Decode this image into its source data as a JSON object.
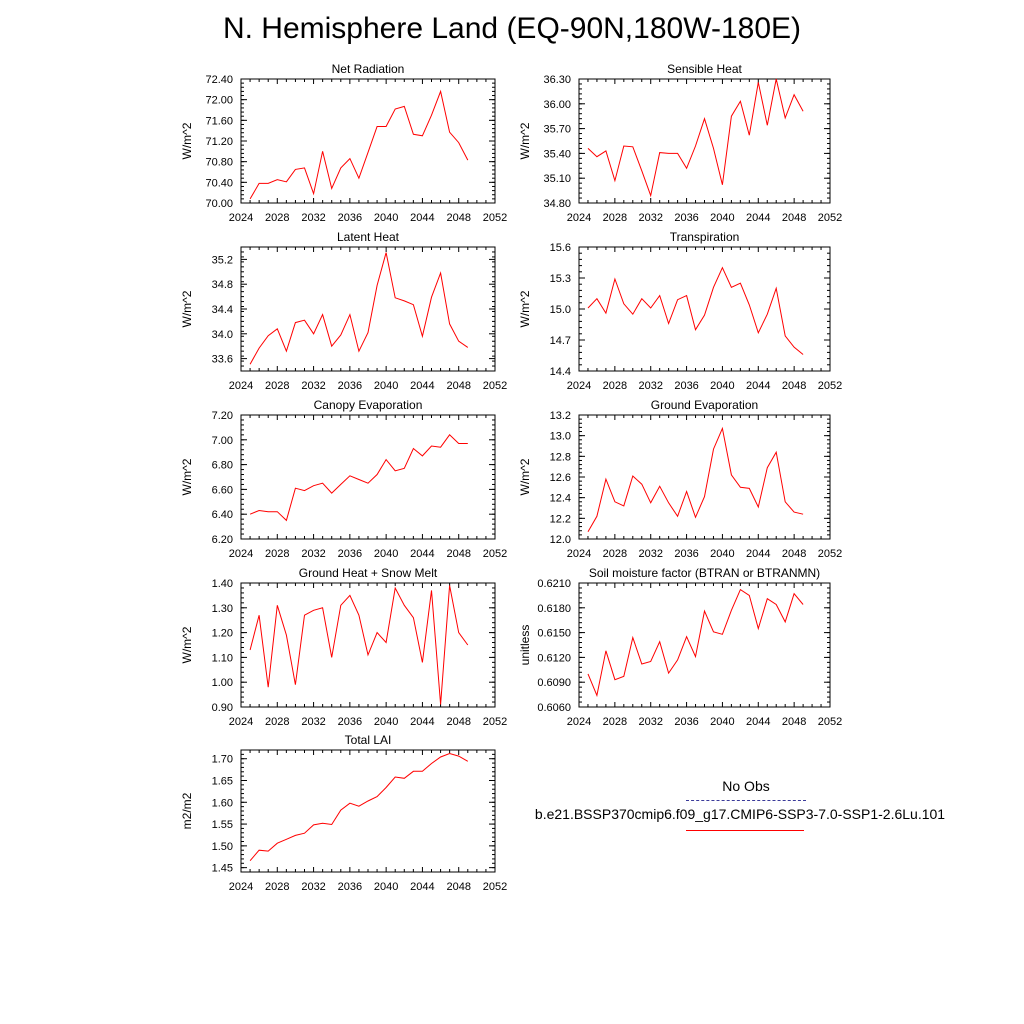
{
  "page": {
    "title": "N. Hemisphere Land (EQ-90N,180W-180E)"
  },
  "legend": {
    "obs_label": "No Obs",
    "model_label": "b.e21.BSSP370cmip6.f09_g17.CMIP6-SSP3-7.0-SSP1-2.6Lu.101",
    "obs_color": "#3a3a9a",
    "model_color": "#ff0000"
  },
  "chart_data": [
    {
      "type": "line",
      "title": "Net Radiation",
      "ylabel": "W/m^2",
      "xlim": [
        2024,
        2052
      ],
      "xticks": [
        "2024",
        "2028",
        "2032",
        "2036",
        "2040",
        "2044",
        "2048",
        "2052"
      ],
      "ylim": [
        70.0,
        72.4
      ],
      "yticks": [
        "70.00",
        "70.40",
        "70.80",
        "71.20",
        "71.60",
        "72.00",
        "72.40"
      ],
      "series": [
        {
          "color": "#ff0000",
          "x": [
            2025,
            2026,
            2027,
            2028,
            2029,
            2030,
            2031,
            2032,
            2033,
            2034,
            2035,
            2036,
            2037,
            2038,
            2039,
            2040,
            2041,
            2042,
            2043,
            2044,
            2045,
            2046,
            2047,
            2048,
            2049
          ],
          "y": [
            70.08,
            70.38,
            70.38,
            70.45,
            70.41,
            70.65,
            70.68,
            70.18,
            71.0,
            70.28,
            70.68,
            70.86,
            70.48,
            70.98,
            71.48,
            71.48,
            71.82,
            71.87,
            71.33,
            71.3,
            71.7,
            72.16,
            71.37,
            71.17,
            70.83
          ]
        }
      ]
    },
    {
      "type": "line",
      "title": "Sensible Heat",
      "ylabel": "W/m^2",
      "xlim": [
        2024,
        2052
      ],
      "xticks": [
        "2024",
        "2028",
        "2032",
        "2036",
        "2040",
        "2044",
        "2048",
        "2052"
      ],
      "ylim": [
        34.8,
        36.3
      ],
      "yticks": [
        "34.80",
        "35.10",
        "35.40",
        "35.70",
        "36.00",
        "36.30"
      ],
      "series": [
        {
          "color": "#ff0000",
          "x": [
            2025,
            2026,
            2027,
            2028,
            2029,
            2030,
            2031,
            2032,
            2033,
            2034,
            2035,
            2036,
            2037,
            2038,
            2039,
            2040,
            2041,
            2042,
            2043,
            2044,
            2045,
            2046,
            2047,
            2048,
            2049
          ],
          "y": [
            35.46,
            35.36,
            35.43,
            35.07,
            35.49,
            35.48,
            35.19,
            34.89,
            35.41,
            35.4,
            35.4,
            35.22,
            35.49,
            35.82,
            35.46,
            35.02,
            35.85,
            36.03,
            35.62,
            36.26,
            35.74,
            36.3,
            35.83,
            36.11,
            35.91
          ]
        }
      ]
    },
    {
      "type": "line",
      "title": "Latent Heat",
      "ylabel": "W/m^2",
      "xlim": [
        2024,
        2052
      ],
      "xticks": [
        "2024",
        "2028",
        "2032",
        "2036",
        "2040",
        "2044",
        "2048",
        "2052"
      ],
      "ylim": [
        33.4,
        35.4
      ],
      "yticks": [
        "33.6",
        "34.0",
        "34.4",
        "34.8",
        "35.2"
      ],
      "series": [
        {
          "color": "#ff0000",
          "x": [
            2025,
            2026,
            2027,
            2028,
            2029,
            2030,
            2031,
            2032,
            2033,
            2034,
            2035,
            2036,
            2037,
            2038,
            2039,
            2040,
            2041,
            2042,
            2043,
            2044,
            2045,
            2046,
            2047,
            2048,
            2049
          ],
          "y": [
            33.51,
            33.77,
            33.97,
            34.08,
            33.72,
            34.18,
            34.22,
            34.0,
            34.31,
            33.8,
            33.98,
            34.31,
            33.72,
            34.02,
            34.78,
            35.31,
            34.58,
            34.53,
            34.47,
            33.96,
            34.59,
            34.98,
            34.16,
            33.88,
            33.78
          ]
        }
      ]
    },
    {
      "type": "line",
      "title": "Transpiration",
      "ylabel": "W/m^2",
      "xlim": [
        2024,
        2052
      ],
      "xticks": [
        "2024",
        "2028",
        "2032",
        "2036",
        "2040",
        "2044",
        "2048",
        "2052"
      ],
      "ylim": [
        14.4,
        15.6
      ],
      "yticks": [
        "14.4",
        "14.7",
        "15.0",
        "15.3",
        "15.6"
      ],
      "series": [
        {
          "color": "#ff0000",
          "x": [
            2025,
            2026,
            2027,
            2028,
            2029,
            2030,
            2031,
            2032,
            2033,
            2034,
            2035,
            2036,
            2037,
            2038,
            2039,
            2040,
            2041,
            2042,
            2043,
            2044,
            2045,
            2046,
            2047,
            2048,
            2049
          ],
          "y": [
            15.01,
            15.1,
            14.96,
            15.29,
            15.05,
            14.95,
            15.1,
            15.01,
            15.13,
            14.86,
            15.09,
            15.13,
            14.8,
            14.94,
            15.21,
            15.4,
            15.21,
            15.25,
            15.04,
            14.77,
            14.95,
            15.2,
            14.74,
            14.63,
            14.56
          ]
        }
      ]
    },
    {
      "type": "line",
      "title": "Canopy Evaporation",
      "ylabel": "W/m^2",
      "xlim": [
        2024,
        2052
      ],
      "xticks": [
        "2024",
        "2028",
        "2032",
        "2036",
        "2040",
        "2044",
        "2048",
        "2052"
      ],
      "ylim": [
        6.2,
        7.2
      ],
      "yticks": [
        "6.20",
        "6.40",
        "6.60",
        "6.80",
        "7.00",
        "7.20"
      ],
      "series": [
        {
          "color": "#ff0000",
          "x": [
            2025,
            2026,
            2027,
            2028,
            2029,
            2030,
            2031,
            2032,
            2033,
            2034,
            2035,
            2036,
            2037,
            2038,
            2039,
            2040,
            2041,
            2042,
            2043,
            2044,
            2045,
            2046,
            2047,
            2048,
            2049
          ],
          "y": [
            6.4,
            6.43,
            6.42,
            6.42,
            6.35,
            6.61,
            6.59,
            6.63,
            6.65,
            6.57,
            6.64,
            6.71,
            6.68,
            6.65,
            6.72,
            6.84,
            6.75,
            6.77,
            6.93,
            6.87,
            6.95,
            6.94,
            7.04,
            6.97,
            6.97
          ]
        }
      ]
    },
    {
      "type": "line",
      "title": "Ground Evaporation",
      "ylabel": "W/m^2",
      "xlim": [
        2024,
        2052
      ],
      "xticks": [
        "2024",
        "2028",
        "2032",
        "2036",
        "2040",
        "2044",
        "2048",
        "2052"
      ],
      "ylim": [
        12.0,
        13.2
      ],
      "yticks": [
        "12.0",
        "12.2",
        "12.4",
        "12.6",
        "12.8",
        "13.0",
        "13.2"
      ],
      "series": [
        {
          "color": "#ff0000",
          "x": [
            2025,
            2026,
            2027,
            2028,
            2029,
            2030,
            2031,
            2032,
            2033,
            2034,
            2035,
            2036,
            2037,
            2038,
            2039,
            2040,
            2041,
            2042,
            2043,
            2044,
            2045,
            2046,
            2047,
            2048,
            2049
          ],
          "y": [
            12.07,
            12.22,
            12.58,
            12.36,
            12.32,
            12.61,
            12.53,
            12.35,
            12.51,
            12.35,
            12.22,
            12.46,
            12.21,
            12.41,
            12.87,
            13.07,
            12.62,
            12.5,
            12.49,
            12.31,
            12.69,
            12.84,
            12.36,
            12.26,
            12.24
          ]
        }
      ]
    },
    {
      "type": "line",
      "title": "Ground Heat + Snow Melt",
      "ylabel": "W/m^2",
      "xlim": [
        2024,
        2052
      ],
      "xticks": [
        "2024",
        "2028",
        "2032",
        "2036",
        "2040",
        "2044",
        "2048",
        "2052"
      ],
      "ylim": [
        0.9,
        1.4
      ],
      "yticks": [
        "0.90",
        "1.00",
        "1.10",
        "1.20",
        "1.30",
        "1.40"
      ],
      "series": [
        {
          "color": "#ff0000",
          "x": [
            2025,
            2026,
            2027,
            2028,
            2029,
            2030,
            2031,
            2032,
            2033,
            2034,
            2035,
            2036,
            2037,
            2038,
            2039,
            2040,
            2041,
            2042,
            2043,
            2044,
            2045,
            2046,
            2047,
            2048,
            2049
          ],
          "y": [
            1.13,
            1.27,
            0.98,
            1.31,
            1.19,
            0.99,
            1.27,
            1.29,
            1.3,
            1.1,
            1.31,
            1.35,
            1.27,
            1.11,
            1.2,
            1.16,
            1.38,
            1.31,
            1.26,
            1.08,
            1.37,
            0.91,
            1.39,
            1.2,
            1.15
          ]
        }
      ]
    },
    {
      "type": "line",
      "title": "Soil moisture factor (BTRAN or BTRANMN)",
      "ylabel": "unitless",
      "xlim": [
        2024,
        2052
      ],
      "xticks": [
        "2024",
        "2028",
        "2032",
        "2036",
        "2040",
        "2044",
        "2048",
        "2052"
      ],
      "ylim": [
        0.606,
        0.621
      ],
      "yticks": [
        "0.6060",
        "0.6090",
        "0.6120",
        "0.6150",
        "0.6180",
        "0.6210"
      ],
      "series": [
        {
          "color": "#ff0000",
          "x": [
            2025,
            2026,
            2027,
            2028,
            2029,
            2030,
            2031,
            2032,
            2033,
            2034,
            2035,
            2036,
            2037,
            2038,
            2039,
            2040,
            2041,
            2042,
            2043,
            2044,
            2045,
            2046,
            2047,
            2048,
            2049
          ],
          "y": [
            0.61,
            0.6074,
            0.6128,
            0.6093,
            0.6097,
            0.6144,
            0.6112,
            0.6115,
            0.6139,
            0.6101,
            0.6117,
            0.6145,
            0.6121,
            0.6176,
            0.6151,
            0.6148,
            0.6177,
            0.6202,
            0.6195,
            0.6155,
            0.6191,
            0.6184,
            0.6163,
            0.6197,
            0.6184
          ]
        }
      ]
    },
    {
      "type": "line",
      "title": "Total LAI",
      "ylabel": "m2/m2",
      "xlim": [
        2024,
        2052
      ],
      "xticks": [
        "2024",
        "2028",
        "2032",
        "2036",
        "2040",
        "2044",
        "2048",
        "2052"
      ],
      "ylim": [
        1.44,
        1.72
      ],
      "yticks": [
        "1.45",
        "1.50",
        "1.55",
        "1.60",
        "1.65",
        "1.70"
      ],
      "series": [
        {
          "color": "#ff0000",
          "x": [
            2025,
            2026,
            2027,
            2028,
            2029,
            2030,
            2031,
            2032,
            2033,
            2034,
            2035,
            2036,
            2037,
            2038,
            2039,
            2040,
            2041,
            2042,
            2043,
            2044,
            2045,
            2046,
            2047,
            2048,
            2049
          ],
          "y": [
            1.466,
            1.49,
            1.488,
            1.506,
            1.515,
            1.524,
            1.529,
            1.548,
            1.552,
            1.549,
            1.582,
            1.598,
            1.591,
            1.603,
            1.613,
            1.634,
            1.658,
            1.655,
            1.671,
            1.671,
            1.689,
            1.704,
            1.712,
            1.706,
            1.694
          ]
        }
      ]
    }
  ]
}
